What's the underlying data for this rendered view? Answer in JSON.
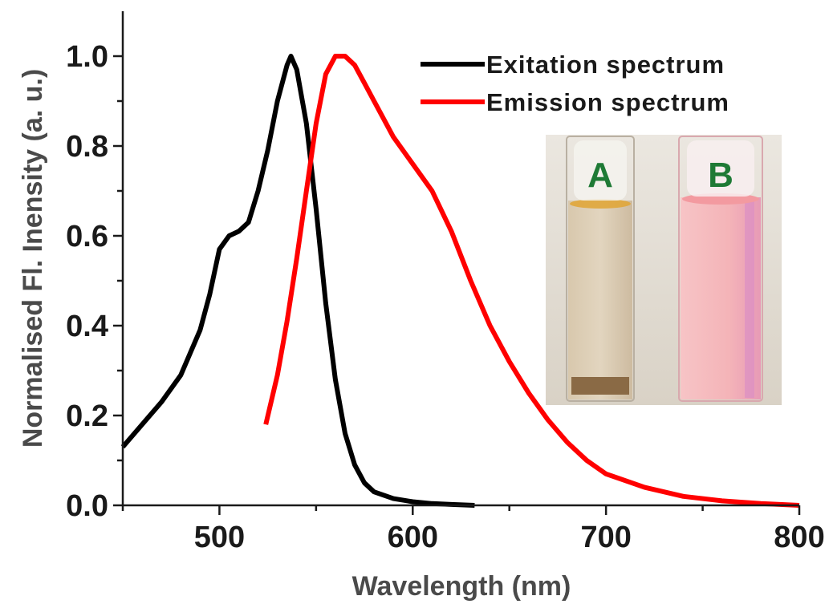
{
  "chart_data": {
    "type": "line",
    "xlabel": "Wavelength (nm)",
    "ylabel": "Normalised Fl. Inensity (a. u.)",
    "xlim": [
      450,
      800
    ],
    "ylim": [
      0,
      1.05
    ],
    "xticks": [
      500,
      600,
      700,
      800
    ],
    "yticks": [
      "0.0",
      "0.2",
      "0.4",
      "0.6",
      "0.8",
      "1.0"
    ],
    "legend_position": "top-right",
    "series": [
      {
        "name": "Exitation spectrum",
        "color": "#000000",
        "x": [
          450,
          460,
          470,
          480,
          490,
          495,
          500,
          505,
          510,
          515,
          520,
          525,
          530,
          535,
          537,
          540,
          545,
          550,
          555,
          560,
          565,
          570,
          575,
          580,
          590,
          600,
          610,
          620,
          632
        ],
        "y": [
          0.13,
          0.18,
          0.23,
          0.29,
          0.39,
          0.47,
          0.57,
          0.6,
          0.61,
          0.63,
          0.7,
          0.79,
          0.9,
          0.98,
          1.0,
          0.97,
          0.85,
          0.66,
          0.45,
          0.28,
          0.16,
          0.09,
          0.05,
          0.03,
          0.015,
          0.008,
          0.004,
          0.002,
          0.0
        ]
      },
      {
        "name": "Emission spectrum",
        "color": "#ff0000",
        "x": [
          524,
          530,
          535,
          540,
          545,
          550,
          555,
          560,
          565,
          570,
          575,
          580,
          585,
          590,
          600,
          610,
          620,
          630,
          640,
          650,
          660,
          670,
          680,
          690,
          700,
          720,
          740,
          760,
          780,
          800
        ],
        "y": [
          0.18,
          0.29,
          0.41,
          0.55,
          0.7,
          0.85,
          0.96,
          1.0,
          1.0,
          0.98,
          0.94,
          0.9,
          0.86,
          0.82,
          0.76,
          0.7,
          0.61,
          0.5,
          0.4,
          0.32,
          0.25,
          0.19,
          0.14,
          0.1,
          0.07,
          0.04,
          0.02,
          0.01,
          0.004,
          0.0
        ]
      }
    ],
    "inset": {
      "labels": [
        "A",
        "B"
      ],
      "colors": [
        "#cdbba0",
        "#f4aab2"
      ]
    }
  }
}
